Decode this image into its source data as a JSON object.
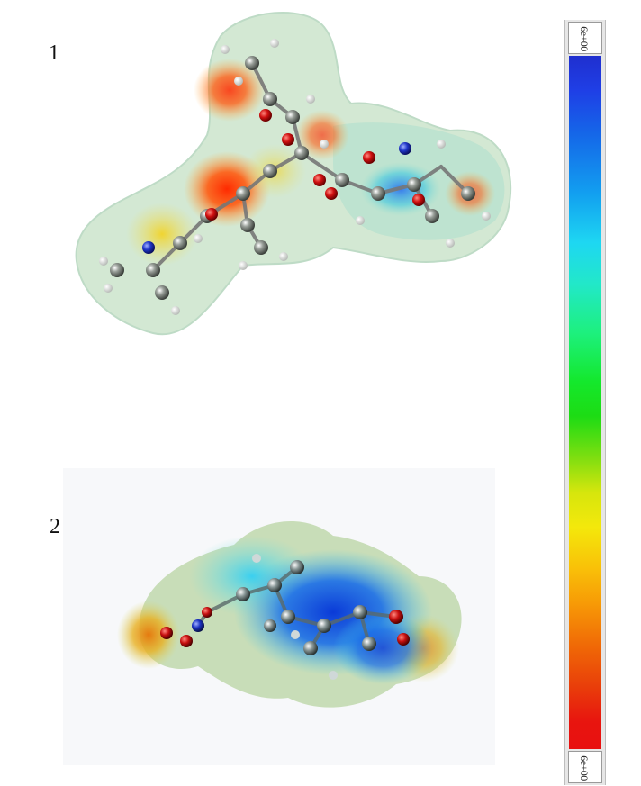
{
  "figure": {
    "labels": {
      "structure_1": "1",
      "structure_2": "2"
    },
    "color_scale": {
      "top_label": "6e+00",
      "bottom_label": "6e+00",
      "colors": [
        "#1f2fcf",
        "#12a0f0",
        "#22e8c8",
        "#14e82c",
        "#f4e80b",
        "#f79a06",
        "#e81010"
      ]
    }
  }
}
